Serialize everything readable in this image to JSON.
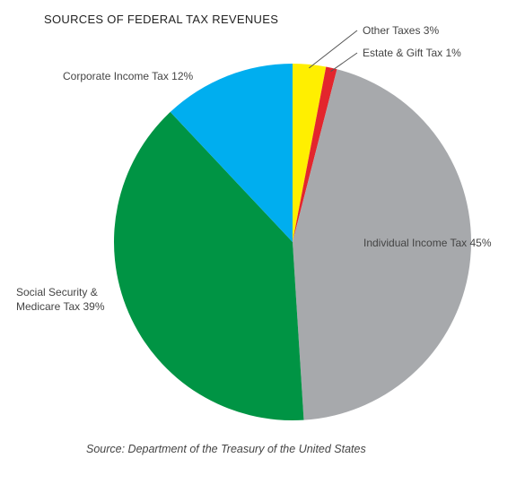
{
  "chart_data": {
    "type": "pie",
    "title": "SOURCES OF FEDERAL TAX REVENUES",
    "source": "Source: Department of the Treasury of the United States",
    "slices": [
      {
        "label": "Other Taxes 3%",
        "value": 3,
        "color": "#ffef00"
      },
      {
        "label": "Estate & Gift Tax 1%",
        "value": 1,
        "color": "#e3262d"
      },
      {
        "label": "Individual Income Tax 45%",
        "value": 45,
        "color": "#a7a9ac"
      },
      {
        "label": "Social Security & Medicare Tax 39%",
        "label_lines": [
          "Social Security &",
          "Medicare Tax 39%"
        ],
        "value": 39,
        "color": "#009444"
      },
      {
        "label": "Corporate Income Tax 12%",
        "value": 12,
        "color": "#00aeef"
      }
    ]
  }
}
